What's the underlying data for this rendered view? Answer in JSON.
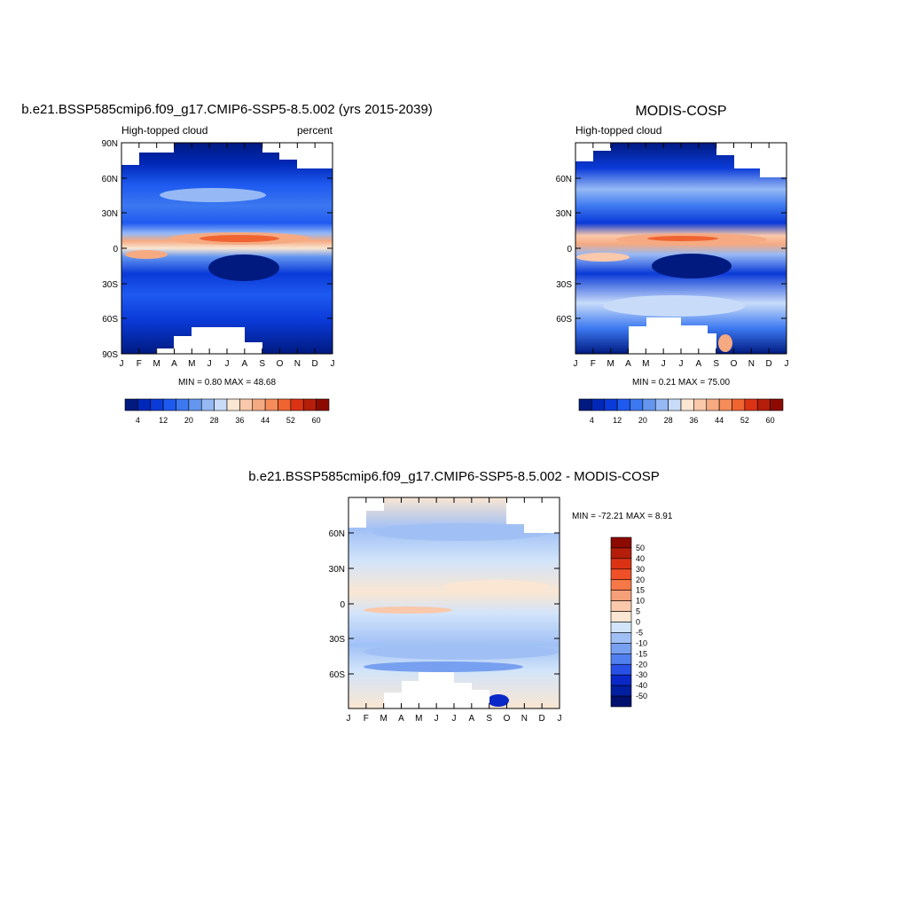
{
  "chart_data": [
    {
      "type": "heatmap",
      "title": "b.e21.BSSP585cmip6.f09_g17.CMIP6-SSP5-8.5.002 (yrs 2015-2039)",
      "left_label": "High-topped cloud",
      "right_label": "percent",
      "x_ticks": [
        "J",
        "F",
        "M",
        "A",
        "M",
        "J",
        "J",
        "A",
        "S",
        "O",
        "N",
        "D",
        "J"
      ],
      "y_ticks": [
        "90N",
        "60N",
        "30N",
        "0",
        "30S",
        "60S",
        "90S"
      ],
      "stats": "MIN =   0.80 MAX =  48.68",
      "colorbar_labels": [
        "4",
        "12",
        "20",
        "28",
        "36",
        "44",
        "52",
        "60"
      ],
      "colorbar_colors": [
        "#001a80",
        "#0028b8",
        "#0a3ad8",
        "#1e5af0",
        "#3c78f0",
        "#6496f0",
        "#96b9f5",
        "#c8dcfa",
        "#fae6d2",
        "#fac8aa",
        "#f5aa82",
        "#f58c5a",
        "#f06432",
        "#dc3214",
        "#b41e0a",
        "#8c0a00"
      ],
      "colorbar_min": 4,
      "colorbar_step": 4,
      "range_min": 0.8,
      "range_max": 48.68
    },
    {
      "type": "heatmap",
      "title": "MODIS-COSP",
      "left_label": "High-topped cloud",
      "x_ticks": [
        "J",
        "F",
        "M",
        "A",
        "M",
        "J",
        "J",
        "A",
        "S",
        "O",
        "N",
        "D",
        "J"
      ],
      "y_ticks": [
        "60N",
        "30N",
        "0",
        "30S",
        "60S"
      ],
      "stats": "MIN =   0.21 MAX =  75.00",
      "colorbar_labels": [
        "4",
        "12",
        "20",
        "28",
        "36",
        "44",
        "52",
        "60"
      ],
      "range_min": 0.21,
      "range_max": 75.0
    },
    {
      "type": "heatmap",
      "title": "b.e21.BSSP585cmip6.f09_g17.CMIP6-SSP5-8.5.002 - MODIS-COSP",
      "x_ticks": [
        "J",
        "F",
        "M",
        "A",
        "M",
        "J",
        "J",
        "A",
        "S",
        "O",
        "N",
        "D",
        "J"
      ],
      "y_ticks": [
        "60N",
        "30N",
        "0",
        "30S",
        "60S"
      ],
      "stats": "MIN = -72.21 MAX =   8.91",
      "colorbar_labels": [
        "50",
        "40",
        "30",
        "20",
        "15",
        "10",
        "5",
        "0",
        "-5",
        "-10",
        "-15",
        "-20",
        "-30",
        "-40",
        "-50"
      ],
      "colorbar_colors": [
        "#8c0a00",
        "#b41e0a",
        "#dc3214",
        "#f05028",
        "#f57846",
        "#f5a078",
        "#fac8aa",
        "#fae6d2",
        "#d2e4fa",
        "#a0c0f5",
        "#78a0f0",
        "#5080f0",
        "#2850e6",
        "#0a28c8",
        "#001ea0",
        "#00106e"
      ],
      "range_min": -72.21,
      "range_max": 8.91
    }
  ]
}
